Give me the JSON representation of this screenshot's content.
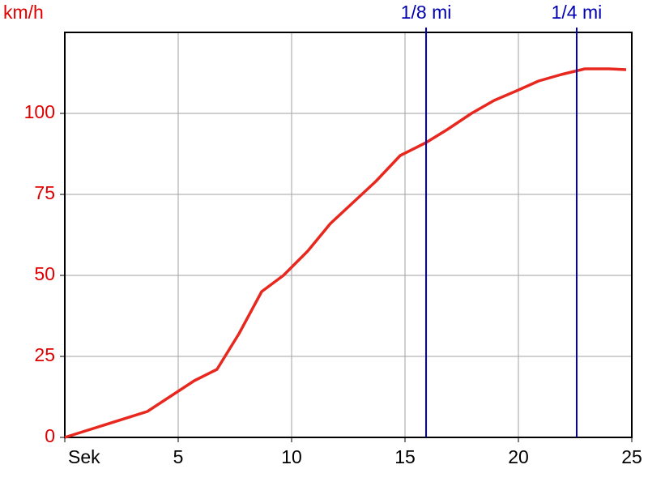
{
  "chart_data": {
    "type": "line",
    "y_label": "km/h",
    "x": [
      0,
      3.64,
      5.71,
      6.71,
      7.68,
      8.68,
      9.64,
      10.71,
      11.71,
      12.71,
      13.71,
      14.79,
      15.93,
      16.86,
      17.93,
      18.93,
      19.93,
      20.89,
      21.89,
      22.93,
      24,
      24.75
    ],
    "series": [
      {
        "color": "#e8281e",
        "values": [
          0,
          8,
          17.5,
          21,
          32,
          45,
          50,
          57.5,
          66,
          72.5,
          79,
          87,
          91,
          95,
          100,
          104,
          107,
          110,
          112,
          113.75,
          113.75,
          113.5
        ]
      }
    ],
    "xlim": [
      0,
      25
    ],
    "ylim": [
      0,
      125
    ],
    "xticks": [
      {
        "value": 0,
        "label": "Sek"
      },
      5,
      10,
      15,
      20,
      25
    ],
    "yticks": [
      0,
      25,
      50,
      75,
      100
    ],
    "grid": true,
    "axis_color": "#e00000",
    "markers": [
      {
        "label": "1/8 mi",
        "x": 15.93,
        "color": "#0000b0"
      },
      {
        "label": "1/4 mi",
        "x": 22.57,
        "color": "#0000b0"
      }
    ]
  }
}
